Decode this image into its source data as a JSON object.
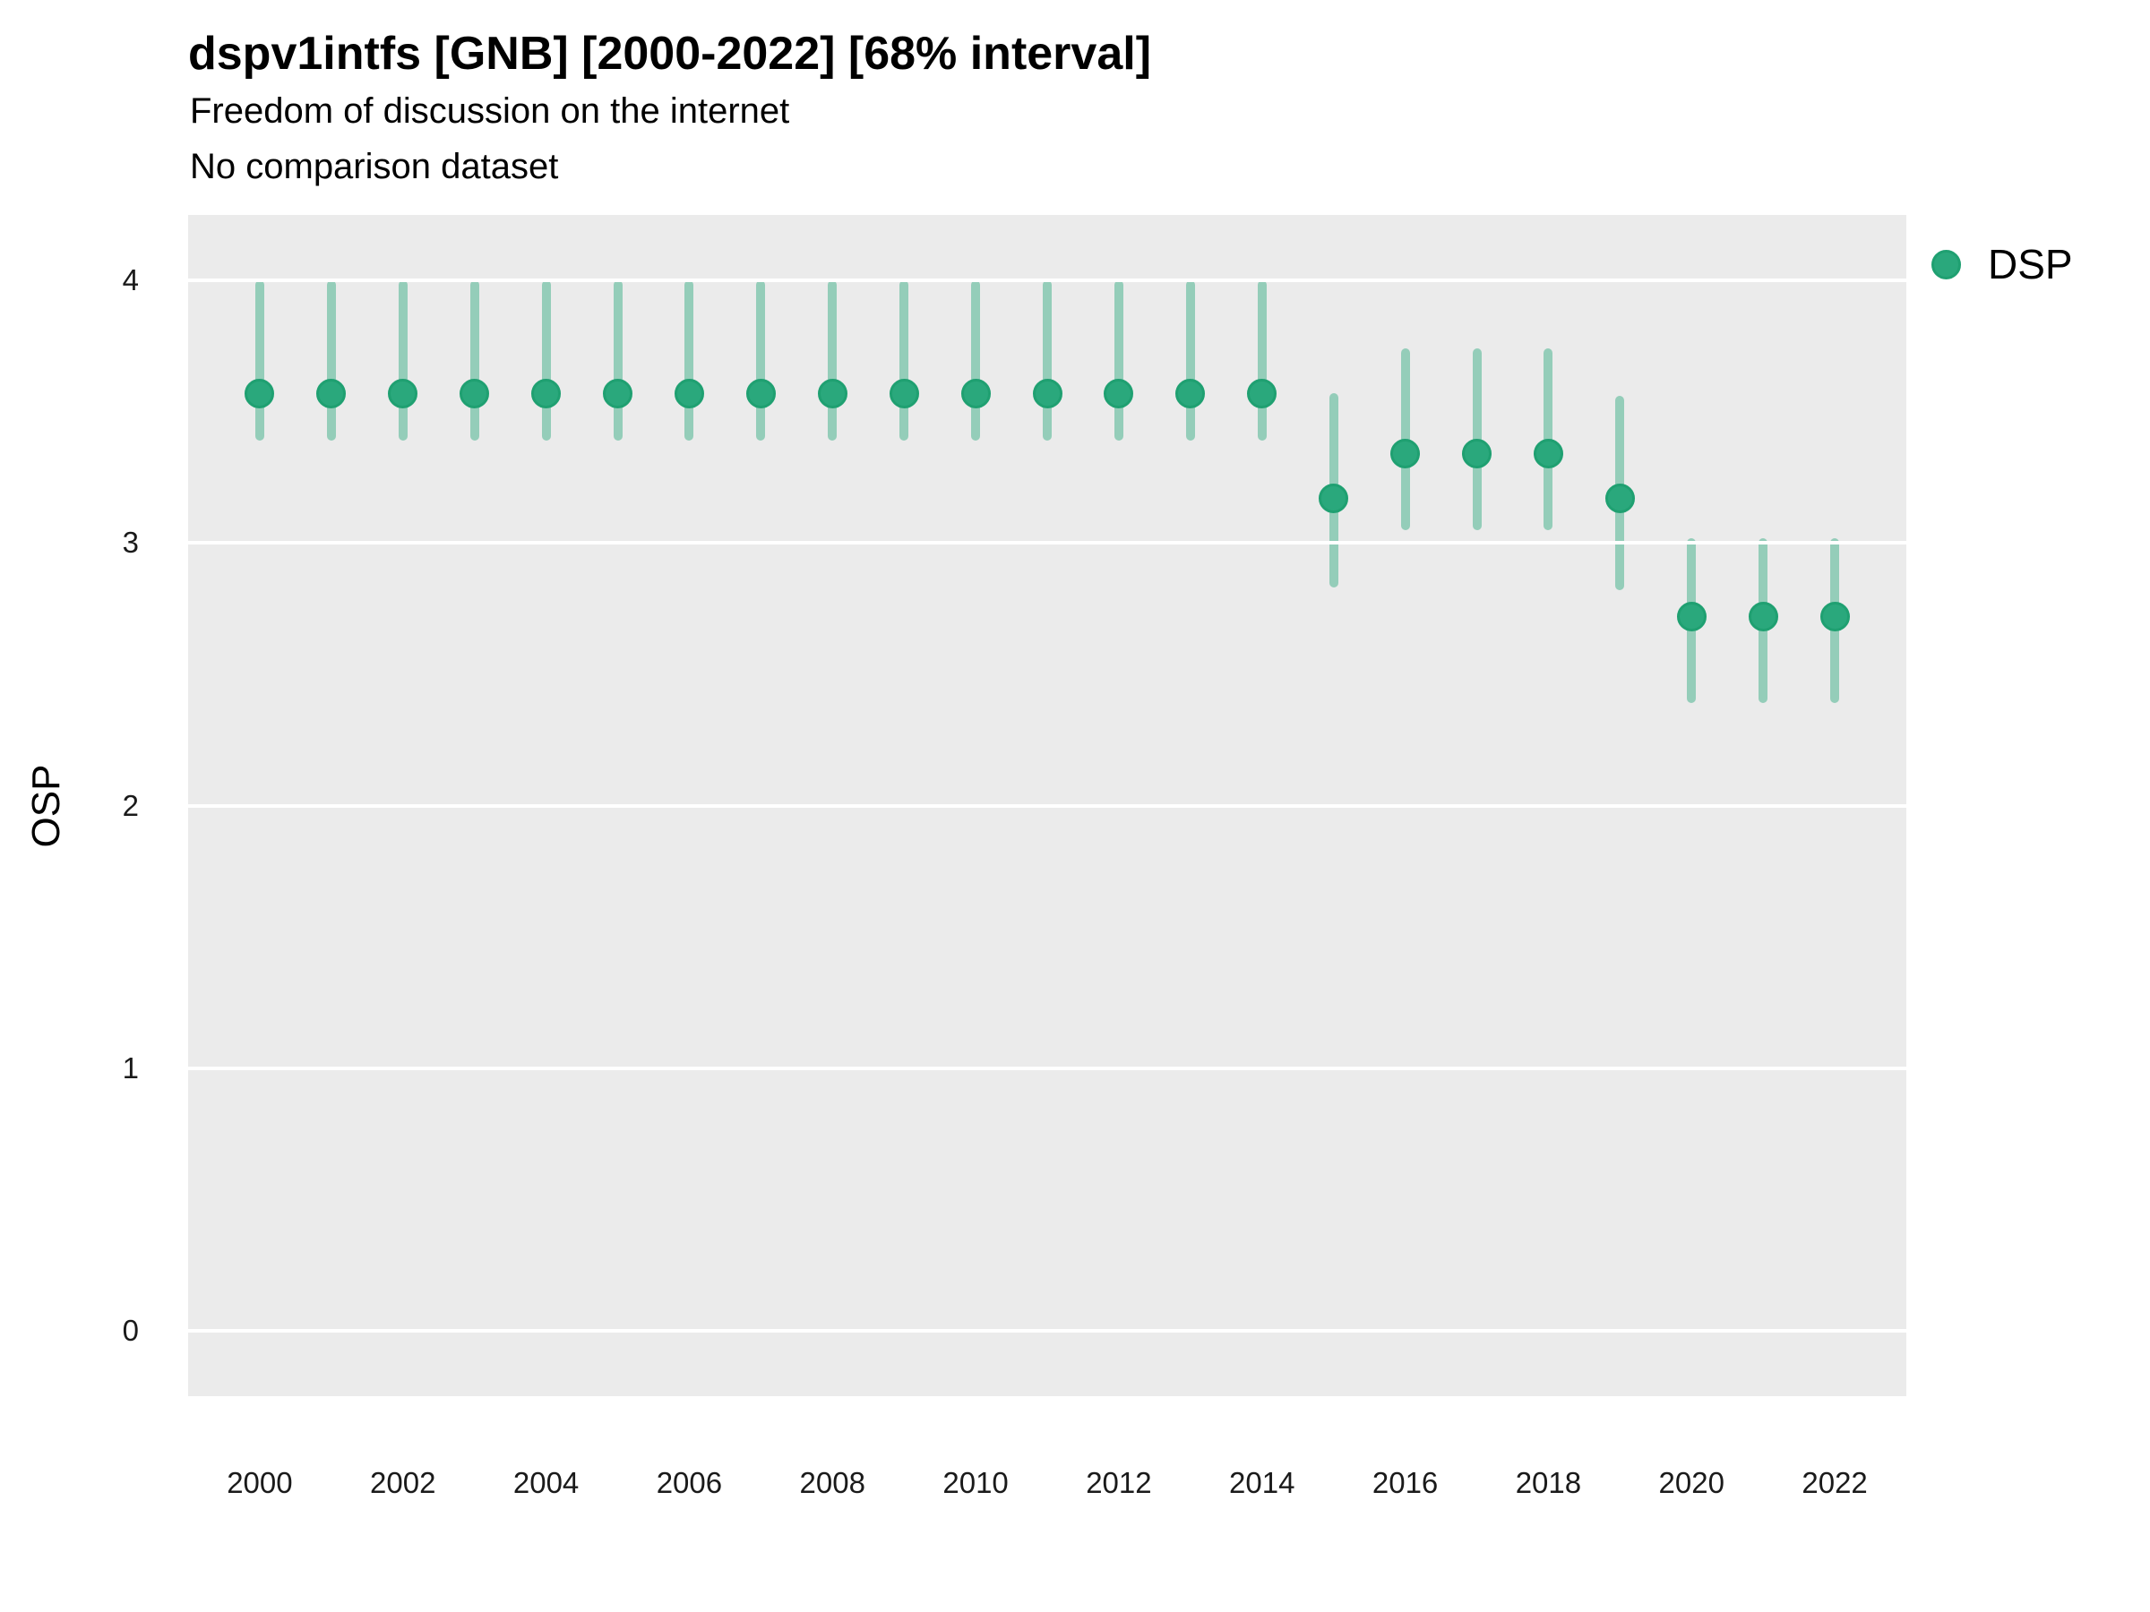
{
  "chart_data": {
    "type": "scatter",
    "variant": "pointrange",
    "title": "dspv1intfs [GNB] [2000-2022] [68% interval]",
    "subtitle": "Freedom of discussion on the internet",
    "subtitle2": "No comparison dataset",
    "xlabel": "",
    "ylabel": "OSP",
    "interval_label": "68% interval",
    "grid": "horizontal-major-only",
    "panel_bg": "#ebebeb",
    "gridline_color": "#ffffff",
    "xlim": [
      1999,
      2023
    ],
    "ylim": [
      -0.25,
      4.25
    ],
    "x_tick_labels": [
      "2000",
      "2002",
      "2004",
      "2006",
      "2008",
      "2010",
      "2012",
      "2014",
      "2016",
      "2018",
      "2020",
      "2022"
    ],
    "y_tick_labels": [
      "0",
      "1",
      "2",
      "3",
      "4"
    ],
    "legend": {
      "position": "right-top",
      "entries": [
        {
          "label": "DSP",
          "color": "#2aa87c"
        }
      ]
    },
    "series": [
      {
        "name": "DSP",
        "point_color": "#2aa87c",
        "point_border_color": "#1fa071",
        "range_color": "rgba(42, 168, 124, 0.45)",
        "points": [
          {
            "x": 2000,
            "y": 3.57,
            "lo": 3.39,
            "hi": 4.0
          },
          {
            "x": 2001,
            "y": 3.57,
            "lo": 3.39,
            "hi": 4.0
          },
          {
            "x": 2002,
            "y": 3.57,
            "lo": 3.39,
            "hi": 4.0
          },
          {
            "x": 2003,
            "y": 3.57,
            "lo": 3.39,
            "hi": 4.0
          },
          {
            "x": 2004,
            "y": 3.57,
            "lo": 3.39,
            "hi": 4.0
          },
          {
            "x": 2005,
            "y": 3.57,
            "lo": 3.39,
            "hi": 4.0
          },
          {
            "x": 2006,
            "y": 3.57,
            "lo": 3.39,
            "hi": 4.0
          },
          {
            "x": 2007,
            "y": 3.57,
            "lo": 3.39,
            "hi": 4.0
          },
          {
            "x": 2008,
            "y": 3.57,
            "lo": 3.39,
            "hi": 4.0
          },
          {
            "x": 2009,
            "y": 3.57,
            "lo": 3.39,
            "hi": 4.0
          },
          {
            "x": 2010,
            "y": 3.57,
            "lo": 3.39,
            "hi": 4.0
          },
          {
            "x": 2011,
            "y": 3.57,
            "lo": 3.39,
            "hi": 4.0
          },
          {
            "x": 2012,
            "y": 3.57,
            "lo": 3.39,
            "hi": 4.0
          },
          {
            "x": 2013,
            "y": 3.57,
            "lo": 3.39,
            "hi": 4.0
          },
          {
            "x": 2014,
            "y": 3.57,
            "lo": 3.39,
            "hi": 4.0
          },
          {
            "x": 2015,
            "y": 3.17,
            "lo": 2.83,
            "hi": 3.57
          },
          {
            "x": 2016,
            "y": 3.34,
            "lo": 3.05,
            "hi": 3.74
          },
          {
            "x": 2017,
            "y": 3.34,
            "lo": 3.05,
            "hi": 3.74
          },
          {
            "x": 2018,
            "y": 3.34,
            "lo": 3.05,
            "hi": 3.74
          },
          {
            "x": 2019,
            "y": 3.17,
            "lo": 2.82,
            "hi": 3.56
          },
          {
            "x": 2020,
            "y": 2.72,
            "lo": 2.39,
            "hi": 3.02
          },
          {
            "x": 2021,
            "y": 2.72,
            "lo": 2.39,
            "hi": 3.02
          },
          {
            "x": 2022,
            "y": 2.72,
            "lo": 2.39,
            "hi": 3.02
          }
        ]
      }
    ]
  }
}
